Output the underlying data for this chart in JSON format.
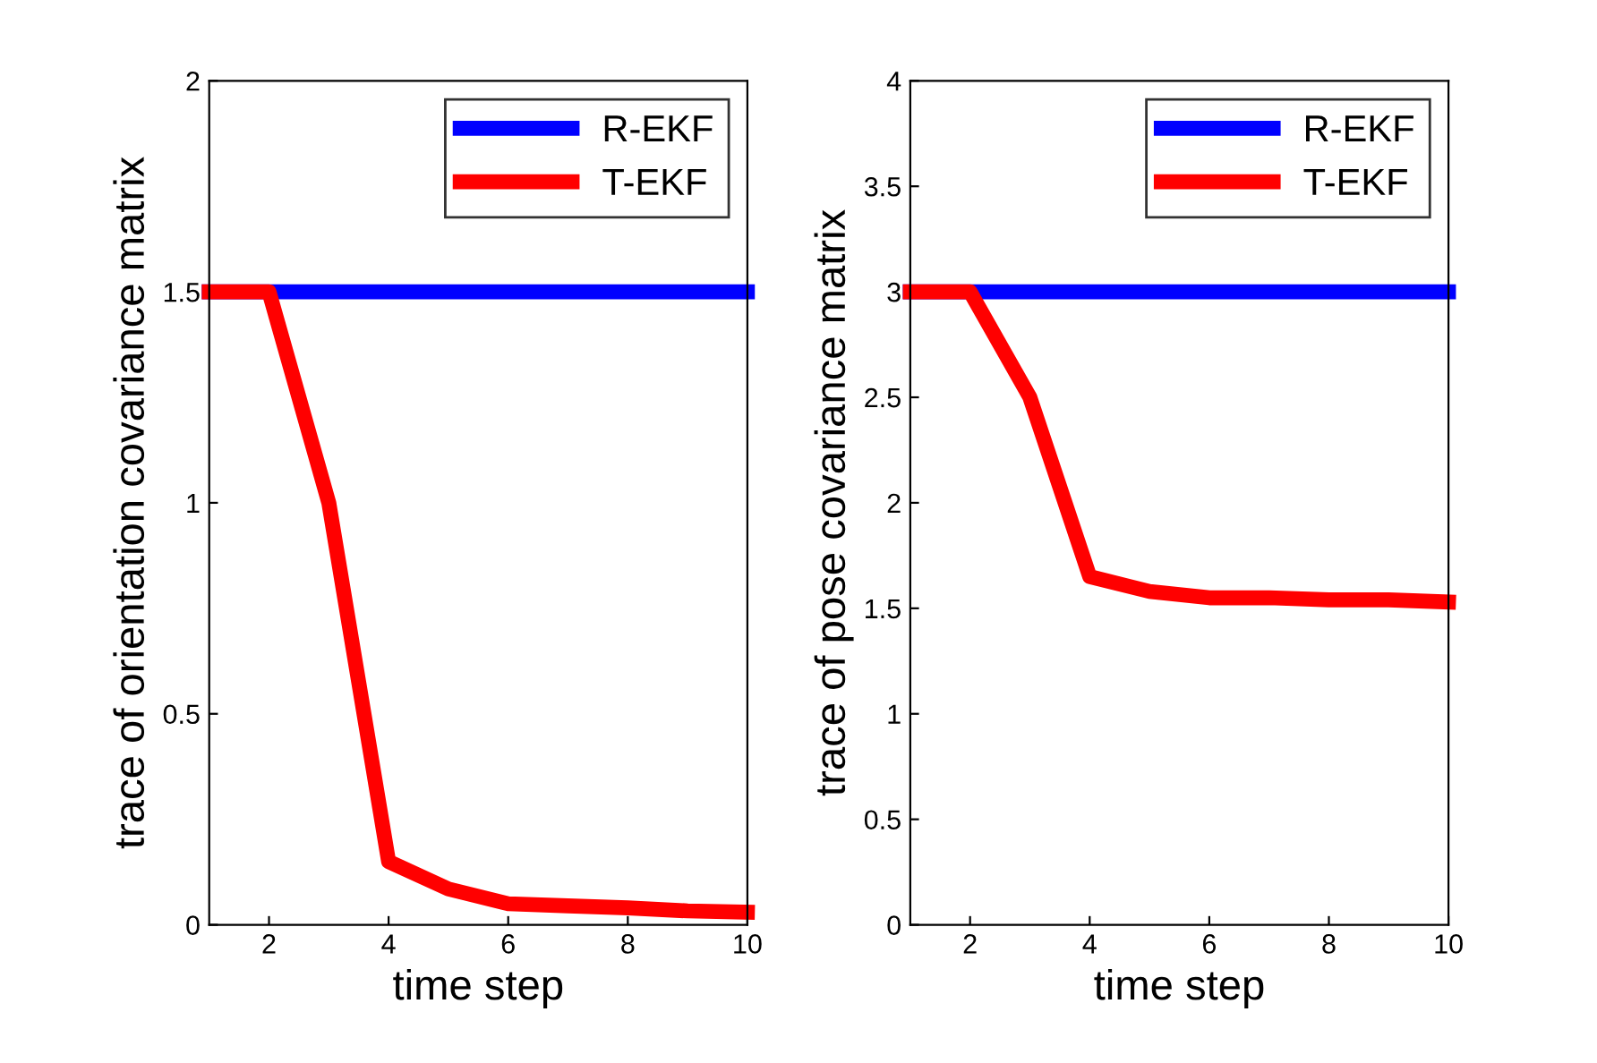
{
  "chart_data": [
    {
      "type": "line",
      "xlabel": "time step",
      "ylabel": "trace of orientation covariance matrix",
      "x": [
        1,
        2,
        3,
        4,
        5,
        6,
        7,
        8,
        9,
        10
      ],
      "xlim": [
        1,
        10
      ],
      "xticks": [
        2,
        4,
        6,
        8,
        10
      ],
      "ylim": [
        0,
        2
      ],
      "yticks": [
        0,
        0.5,
        1,
        1.5,
        2
      ],
      "legend": "top right",
      "grid": false,
      "marker": "none",
      "line_style": "solid",
      "series": [
        {
          "name": "R-EKF",
          "color": "#0000ff",
          "values": [
            1.5,
            1.5,
            1.5,
            1.5,
            1.5,
            1.5,
            1.5,
            1.5,
            1.5,
            1.5
          ]
        },
        {
          "name": "T-EKF",
          "color": "#ff0000",
          "values": [
            1.5,
            1.5,
            1.0,
            0.15,
            0.085,
            0.05,
            0.045,
            0.04,
            0.033,
            0.03
          ]
        }
      ]
    },
    {
      "type": "line",
      "xlabel": "time step",
      "ylabel": "trace of pose covariance matrix",
      "x": [
        1,
        2,
        3,
        4,
        5,
        6,
        7,
        8,
        9,
        10
      ],
      "xlim": [
        1,
        10
      ],
      "xticks": [
        2,
        4,
        6,
        8,
        10
      ],
      "ylim": [
        0,
        4
      ],
      "yticks": [
        0,
        0.5,
        1,
        1.5,
        2,
        2.5,
        3,
        3.5,
        4
      ],
      "legend": "top right",
      "grid": false,
      "marker": "none",
      "line_style": "solid",
      "series": [
        {
          "name": "R-EKF",
          "color": "#0000ff",
          "values": [
            3,
            3,
            3,
            3,
            3,
            3,
            3,
            3,
            3,
            3
          ]
        },
        {
          "name": "T-EKF",
          "color": "#ff0000",
          "values": [
            3,
            3,
            2.5,
            1.65,
            1.58,
            1.55,
            1.55,
            1.54,
            1.54,
            1.53
          ]
        }
      ]
    }
  ]
}
